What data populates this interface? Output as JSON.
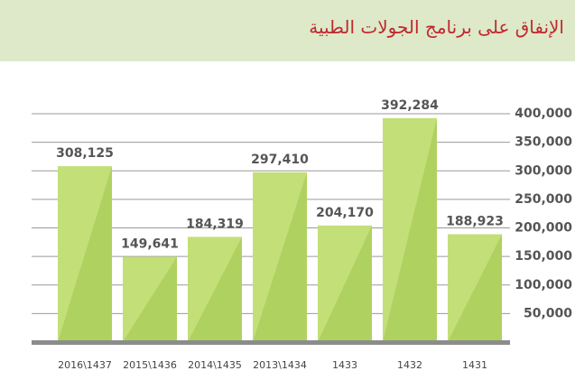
{
  "chart_data": {
    "type": "bar",
    "title": "الإنفاق على برنامج الجولات الطبية",
    "categories": [
      "2016\\1437",
      "2015\\1436",
      "2014\\1435",
      "2013\\1434",
      "1433",
      "1432",
      "1431"
    ],
    "values": [
      308125,
      149641,
      184319,
      297410,
      204170,
      392284,
      188923
    ],
    "value_labels": [
      "308,125",
      "149,641",
      "184,319",
      "297,410",
      "204,170",
      "392,284",
      "188,923"
    ],
    "color": "#c3df78",
    "ylim": [
      0,
      400000
    ],
    "yticks": [
      {
        "value": 50000,
        "label": "50,000"
      },
      {
        "value": 100000,
        "label": "100,000"
      },
      {
        "value": 150000,
        "label": "150,000"
      },
      {
        "value": 200000,
        "label": "200,000"
      },
      {
        "value": 250000,
        "label": "250,000"
      },
      {
        "value": 300000,
        "label": "300,000"
      },
      {
        "value": 350000,
        "label": "350,000"
      },
      {
        "value": 400000,
        "label": "400,000"
      }
    ],
    "grid": true
  }
}
